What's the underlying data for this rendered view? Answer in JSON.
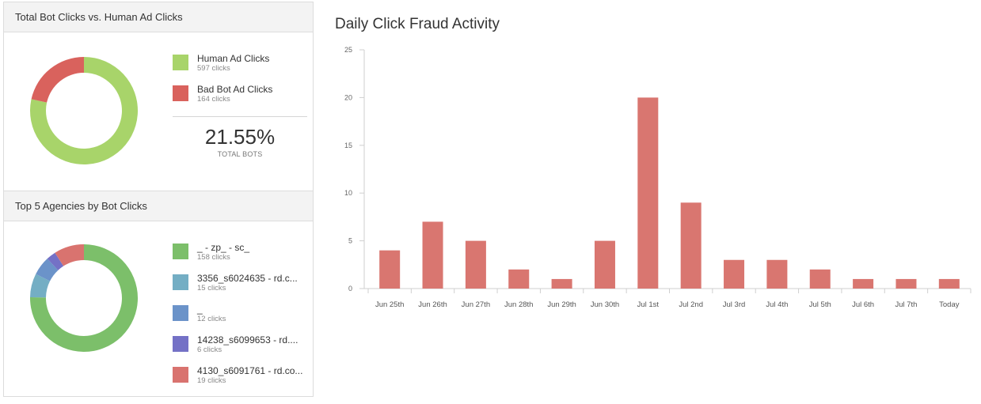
{
  "bots_panel": {
    "title": "Total Bot Clicks vs. Human Ad Clicks",
    "legend": [
      {
        "name": "Human Ad Clicks",
        "clicks": "597 clicks",
        "value": 597,
        "color": "#a8d46a"
      },
      {
        "name": "Bad Bot Ad Clicks",
        "clicks": "164 clicks",
        "value": 164,
        "color": "#d9625d"
      }
    ],
    "total_pct": "21.55%",
    "total_label": "TOTAL BOTS"
  },
  "agencies_panel": {
    "title": "Top 5 Agencies by Bot Clicks",
    "legend": [
      {
        "name": "_ - zp_ - sc_",
        "clicks": "158 clicks",
        "value": 158,
        "color": "#7cbf6a"
      },
      {
        "name": "3356_s6024635 - rd.c...",
        "clicks": "15 clicks",
        "value": 15,
        "color": "#74aec4"
      },
      {
        "name": "_",
        "clicks": "12 clicks",
        "value": 12,
        "color": "#6b93c9"
      },
      {
        "name": "14238_s6099653 - rd....",
        "clicks": "6 clicks",
        "value": 6,
        "color": "#7471c6"
      },
      {
        "name": "4130_s6091761 - rd.co...",
        "clicks": "19 clicks",
        "value": 19,
        "color": "#d9736f"
      }
    ]
  },
  "chart_data": {
    "type": "bar",
    "title": "Daily Click Fraud Activity",
    "categories": [
      "Jun 25th",
      "Jun 26th",
      "Jun 27th",
      "Jun 28th",
      "Jun 29th",
      "Jun 30th",
      "Jul 1st",
      "Jul 2nd",
      "Jul 3rd",
      "Jul 4th",
      "Jul 5th",
      "Jul 6th",
      "Jul 7th",
      "Today"
    ],
    "values": [
      4,
      7,
      5,
      2,
      1,
      5,
      20,
      9,
      3,
      3,
      2,
      1,
      1,
      1
    ],
    "yticks": [
      0,
      5,
      10,
      15,
      20,
      25
    ],
    "ylim": [
      0,
      25
    ],
    "bar_color": "#d97670",
    "grid": false
  }
}
